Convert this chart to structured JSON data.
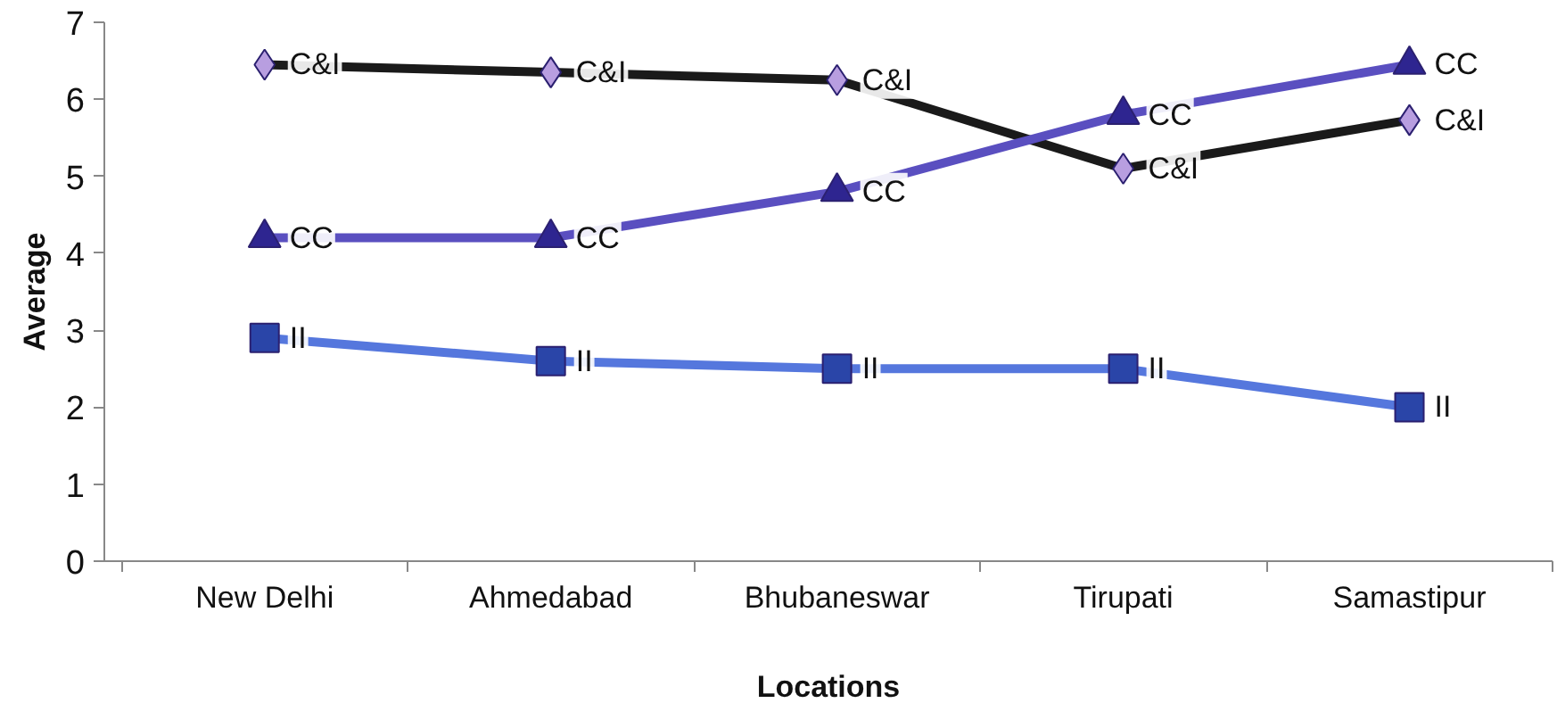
{
  "chart_data": {
    "type": "line",
    "xlabel": "Locations",
    "ylabel": "Average",
    "categories": [
      "New Delhi",
      "Ahmedabad",
      "Bhubaneswar",
      "Tirupati",
      "Samastipur"
    ],
    "ylim": [
      0,
      7
    ],
    "yticks": [
      0,
      1,
      2,
      3,
      4,
      5,
      6,
      7
    ],
    "grid": false,
    "series": [
      {
        "name": "C&I",
        "color": "#1a1a1a",
        "colors": [
          "#b89ee0",
          "#b89ee0",
          "#b89ee0",
          "#b89ee0",
          "#b89ee0"
        ],
        "marker": "diamond",
        "values": [
          6.45,
          6.35,
          6.25,
          5.1,
          5.73
        ]
      },
      {
        "name": "CC",
        "color": "#5a4fc0",
        "colors": [
          "#2e2590",
          "#2e2590",
          "#2e2590",
          "#2e2590",
          "#2e2590"
        ],
        "marker": "triangle",
        "values": [
          4.2,
          4.2,
          4.8,
          5.8,
          6.45
        ]
      },
      {
        "name": "II",
        "color": "#5577dd",
        "colors": [
          "#2a45a8",
          "#2a45a8",
          "#2a45a8",
          "#2a45a8",
          "#2a45a8"
        ],
        "marker": "square",
        "values": [
          2.9,
          2.6,
          2.5,
          2.5,
          2.0
        ]
      }
    ]
  }
}
